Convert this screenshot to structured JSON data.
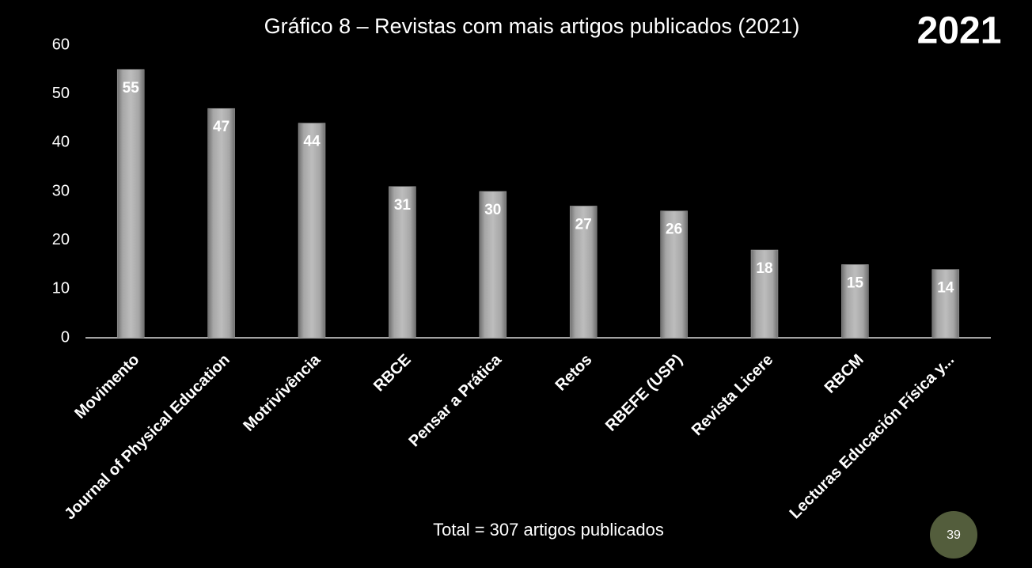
{
  "chart_data": {
    "type": "bar",
    "title": "Gráfico 8 – Revistas com mais artigos publicados (2021)",
    "categories": [
      "Movimento",
      "Journal of Physical Education",
      "Motrivivência",
      "RBCE",
      "Pensar a Prática",
      "Retos",
      "RBEFE (USP)",
      "Revista Licere",
      "RBCM",
      "Lecturas Educación Física y..."
    ],
    "values": [
      55,
      47,
      44,
      31,
      30,
      27,
      26,
      18,
      15,
      14
    ],
    "color": "#a6a6a6",
    "ylim": [
      0,
      60
    ],
    "yticks": [
      0,
      10,
      20,
      30,
      40,
      50,
      60
    ],
    "grid": false
  },
  "slide": {
    "year_badge": "2021",
    "footer": "Total = 307 artigos publicados",
    "page_number": "39"
  }
}
